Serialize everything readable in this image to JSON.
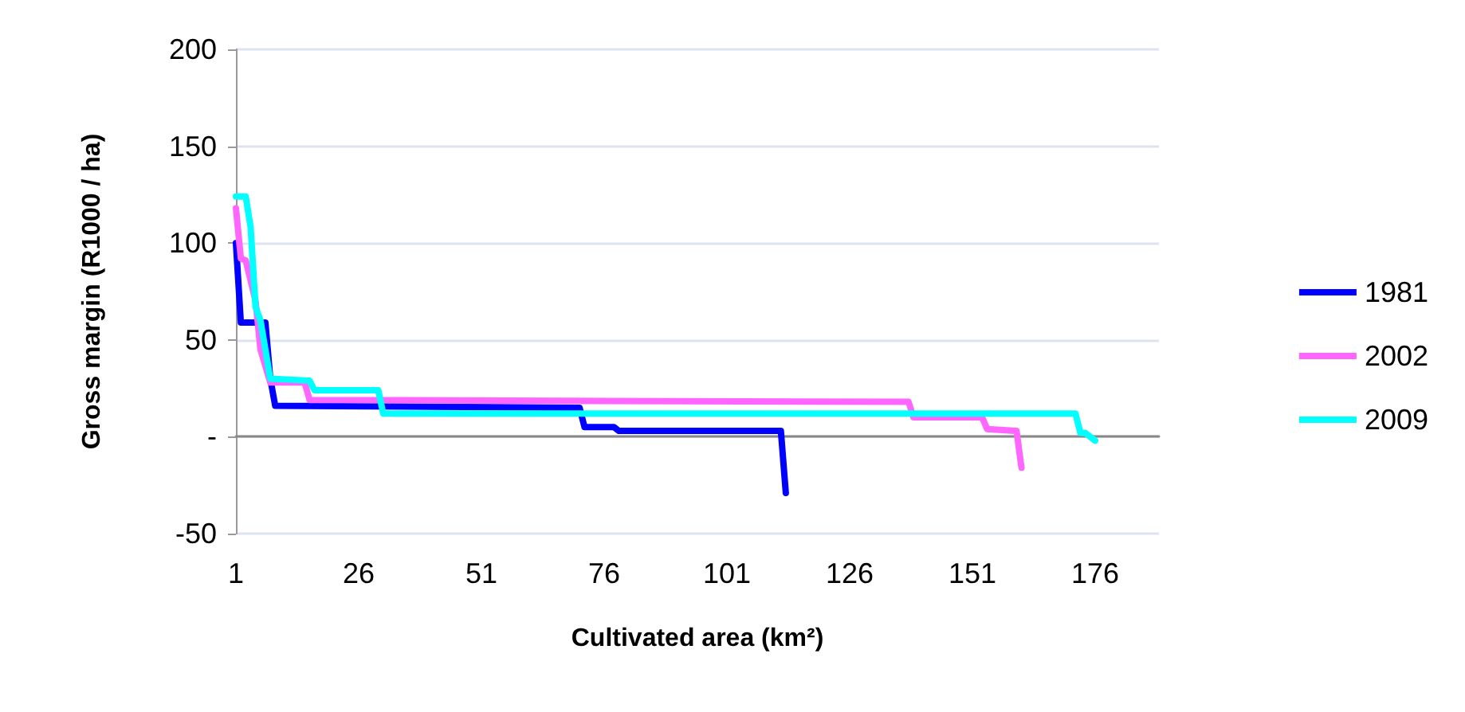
{
  "chart_data": {
    "type": "line",
    "xlabel": "Cultivated area (km²)",
    "ylabel": "Gross margin (R1000 / ha)",
    "xlim": [
      1,
      189
    ],
    "xticks": [
      1,
      26,
      51,
      76,
      101,
      126,
      151,
      176
    ],
    "ylim": [
      -50,
      200
    ],
    "yticks": [
      -50,
      {
        "value": 0,
        "label": "-"
      },
      50,
      100,
      150,
      200
    ],
    "grid": "y",
    "legend": "right",
    "marker": "none",
    "line_style": "solid",
    "series": [
      {
        "name": "1981",
        "color": "#0000ff",
        "x": [
          1,
          2,
          7,
          8,
          9,
          71,
          72,
          78,
          79,
          112,
          113
        ],
        "values": [
          100,
          59,
          59,
          30,
          16,
          15,
          5,
          5,
          3,
          3,
          -29
        ]
      },
      {
        "name": "2002",
        "color": "#ff66ff",
        "x": [
          1,
          2,
          3,
          5,
          6,
          8,
          15,
          16,
          138,
          139,
          153,
          154,
          160,
          161
        ],
        "values": [
          118,
          92,
          91,
          70,
          45,
          28,
          28,
          19,
          18,
          10,
          10,
          4,
          3,
          -16
        ]
      },
      {
        "name": "2009",
        "color": "#00ffff",
        "x": [
          1,
          3,
          4,
          5,
          6,
          8,
          16,
          17,
          30,
          31,
          172,
          173,
          174,
          176
        ],
        "values": [
          124,
          124,
          108,
          67,
          60,
          30,
          29,
          24,
          24,
          12,
          12,
          2,
          2,
          -2
        ]
      }
    ]
  }
}
